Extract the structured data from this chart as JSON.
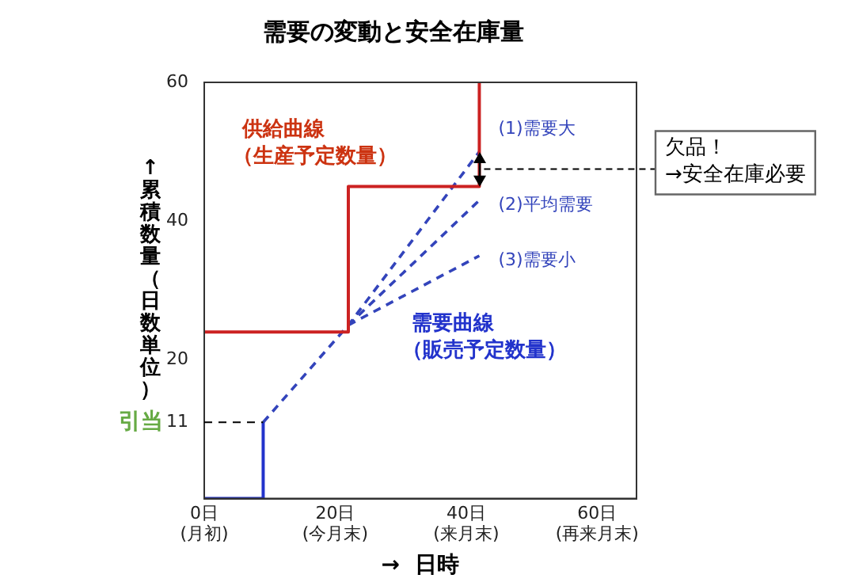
{
  "chart_data": {
    "type": "line",
    "title": "需要の変動と安全在庫量",
    "xlabel": "→  日時",
    "ylabel": "↑ 累積数量（日数単位）",
    "xlim": [
      0,
      66
    ],
    "xticks": [
      {
        "value": 0,
        "label": "0日\n(月初)"
      },
      {
        "value": 20,
        "label": "20日\n(今月末)"
      },
      {
        "value": 40,
        "label": "40日\n(来月末)"
      },
      {
        "value": 60,
        "label": "60日\n(再来月末)"
      }
    ],
    "ylim": [
      0,
      60
    ],
    "yticks": [
      11,
      20,
      40,
      60
    ],
    "grid": false,
    "marker": "none",
    "series": [
      {
        "type": "step",
        "name": "供給曲線（生産予定数量）",
        "color": "#cc2222",
        "x": [
          0,
          22,
          42
        ],
        "values": [
          24,
          45,
          60
        ]
      },
      {
        "type": "line",
        "name": "需要曲線（販売予定数量）",
        "color": "#2233cc",
        "x": [
          0,
          9,
          9
        ],
        "values": [
          0,
          0,
          11
        ]
      },
      {
        "type": "line",
        "name": "(1)需要大",
        "color": "#3344bb",
        "line_style": "dashed",
        "x": [
          9,
          22,
          42
        ],
        "values": [
          11,
          25,
          50
        ]
      },
      {
        "type": "line",
        "name": "(2)平均需要",
        "color": "#3344bb",
        "line_style": "dashed",
        "x": [
          22,
          42
        ],
        "values": [
          25,
          43
        ]
      },
      {
        "type": "line",
        "name": "(3)需要小",
        "color": "#3344bb",
        "line_style": "dashed",
        "x": [
          22,
          42
        ],
        "values": [
          25,
          35
        ]
      }
    ],
    "ref_lines": [
      {
        "axis": "y",
        "value": 11,
        "label": "引当",
        "color": "#000000",
        "line_style": "dashed"
      }
    ],
    "annotations": [
      {
        "text": "欠品！\n→安全在庫必要",
        "x": 42,
        "y": 47.5
      }
    ]
  }
}
